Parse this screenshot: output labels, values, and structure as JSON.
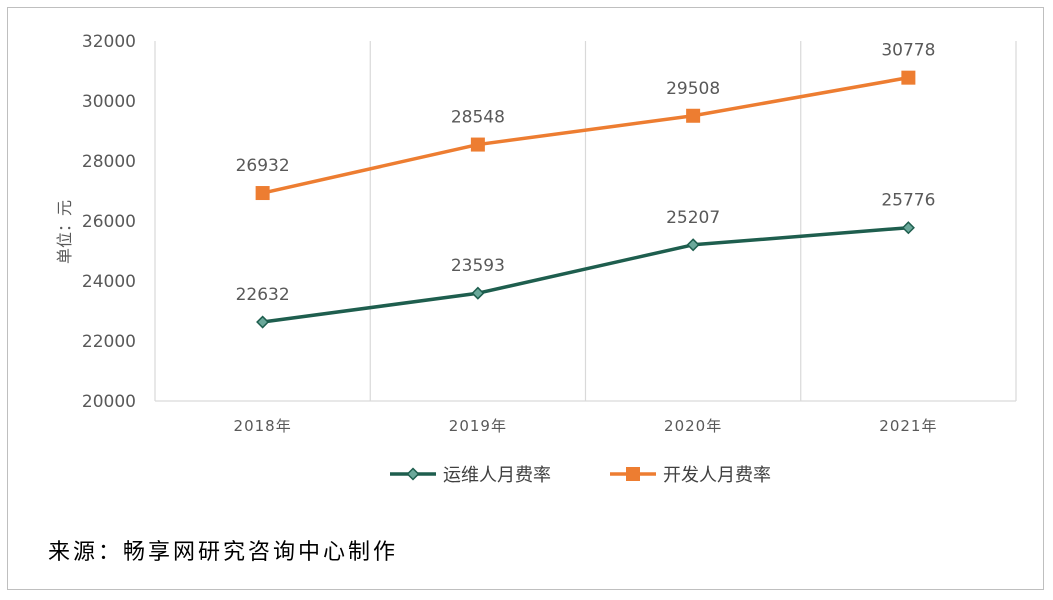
{
  "chart_data": {
    "type": "line",
    "categories": [
      "2018年",
      "2019年",
      "2020年",
      "2021年"
    ],
    "series": [
      {
        "name": "运维人月费率",
        "values": [
          22632,
          23593,
          25207,
          25776
        ],
        "color": "#1e5e4e",
        "marker": "diamond"
      },
      {
        "name": "开发人月费率",
        "values": [
          26932,
          28548,
          29508,
          30778
        ],
        "color": "#ed7d31",
        "marker": "square"
      }
    ],
    "ylabel": "单位：元",
    "ylim": [
      20000,
      32000
    ],
    "yticks": [
      20000,
      22000,
      24000,
      26000,
      28000,
      30000,
      32000
    ],
    "grid": "vertical",
    "legend_position": "bottom"
  },
  "source_note": "来源：畅享网研究咨询中心制作"
}
